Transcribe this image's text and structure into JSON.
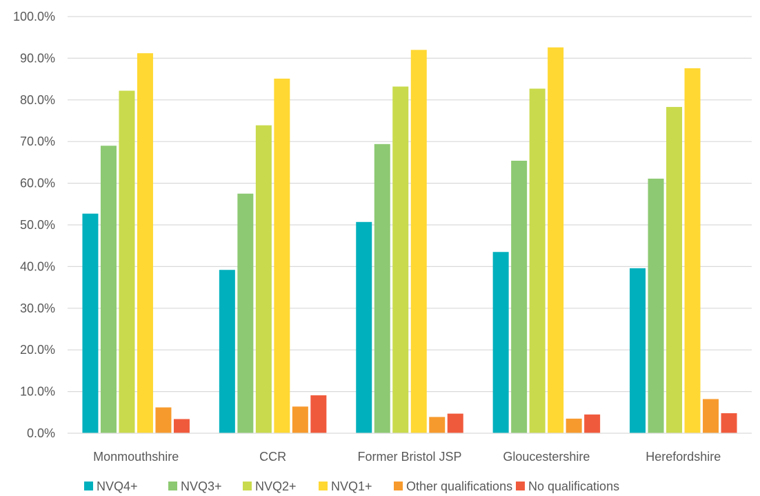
{
  "chart_data": {
    "type": "bar",
    "title": "",
    "xlabel": "",
    "ylabel": "",
    "categories": [
      "Monmouthshire",
      "CCR",
      "Former Bristol JSP",
      "Gloucestershire",
      "Herefordshire"
    ],
    "ylim": [
      0,
      100
    ],
    "yticks": [
      0,
      10,
      20,
      30,
      40,
      50,
      60,
      70,
      80,
      90,
      100
    ],
    "ytick_labels": [
      "0.0%",
      "10.0%",
      "20.0%",
      "30.0%",
      "40.0%",
      "50.0%",
      "60.0%",
      "70.0%",
      "80.0%",
      "90.0%",
      "100.0%"
    ],
    "grid": true,
    "legend_position": "bottom",
    "series": [
      {
        "name": "NVQ4+",
        "color": "#00B0BD",
        "values": [
          52.7,
          39.2,
          50.7,
          43.5,
          39.6
        ]
      },
      {
        "name": "NVQ3+",
        "color": "#8DC972",
        "values": [
          69.0,
          57.5,
          69.4,
          65.4,
          61.1
        ]
      },
      {
        "name": "NVQ2+",
        "color": "#C9DA4C",
        "values": [
          82.2,
          73.9,
          83.2,
          82.7,
          78.3
        ]
      },
      {
        "name": "NVQ1+",
        "color": "#FFD833",
        "values": [
          91.2,
          85.1,
          92.0,
          92.6,
          87.6
        ]
      },
      {
        "name": "Other qualifications",
        "color": "#F79A2D",
        "values": [
          6.2,
          6.4,
          3.9,
          3.5,
          8.2
        ]
      },
      {
        "name": "No qualifications",
        "color": "#F05A3C",
        "values": [
          3.4,
          9.1,
          4.7,
          4.5,
          4.8
        ]
      }
    ]
  }
}
